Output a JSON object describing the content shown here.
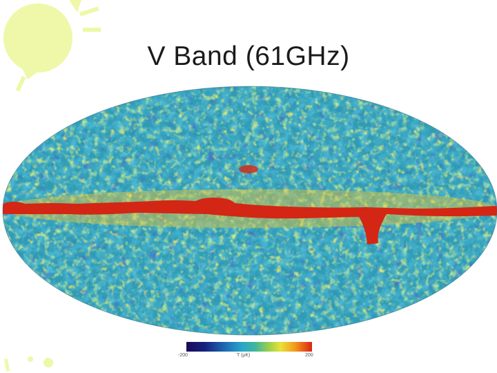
{
  "slide": {
    "title": "V Band (61GHz)"
  },
  "colorbar": {
    "min_label": "-200",
    "mid_label": "T (µK)",
    "max_label": "200",
    "colors": [
      "#1a0a5a",
      "#14237e",
      "#1f6fb8",
      "#2aa8c8",
      "#40b69a",
      "#9ed04a",
      "#e8e23a",
      "#f39c1c",
      "#d92414"
    ]
  },
  "decoration": {
    "accent_color": "#e6f59a",
    "icon": "sun-icon"
  }
}
